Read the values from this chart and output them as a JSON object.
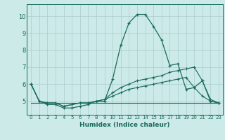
{
  "xlabel": "Humidex (Indice chaleur)",
  "bg_color": "#cceae8",
  "grid_color": "#aacccc",
  "line_color": "#1a6b5a",
  "x_ticks": [
    0,
    1,
    2,
    3,
    4,
    5,
    6,
    7,
    8,
    9,
    10,
    11,
    12,
    13,
    14,
    15,
    16,
    17,
    18,
    19,
    20,
    21,
    22,
    23
  ],
  "y_ticks": [
    5,
    6,
    7,
    8,
    9,
    10
  ],
  "xlim": [
    -0.5,
    23.5
  ],
  "ylim": [
    4.2,
    10.7
  ],
  "series": [
    [
      6.0,
      5.0,
      4.8,
      4.8,
      4.6,
      4.6,
      4.7,
      4.8,
      5.0,
      5.0,
      6.3,
      8.3,
      9.6,
      10.1,
      10.1,
      9.4,
      8.6,
      7.1,
      7.2,
      5.7,
      5.8,
      6.2,
      5.0,
      4.9
    ],
    [
      6.0,
      5.0,
      4.9,
      4.9,
      4.7,
      4.8,
      4.9,
      4.9,
      5.0,
      5.1,
      5.5,
      5.8,
      6.0,
      6.2,
      6.3,
      6.4,
      6.5,
      6.7,
      6.8,
      6.9,
      7.0,
      6.2,
      5.1,
      4.9
    ],
    [
      6.0,
      5.0,
      4.9,
      4.9,
      4.7,
      4.8,
      4.9,
      4.9,
      5.0,
      5.1,
      5.3,
      5.5,
      5.7,
      5.8,
      5.9,
      6.0,
      6.1,
      6.2,
      6.3,
      6.4,
      5.8,
      5.3,
      5.0,
      4.9
    ],
    [
      4.9,
      4.9,
      4.9,
      4.9,
      4.9,
      4.9,
      4.9,
      4.9,
      4.9,
      4.9,
      4.9,
      4.9,
      4.9,
      4.9,
      4.9,
      4.9,
      4.9,
      4.9,
      4.9,
      4.9,
      4.9,
      4.9,
      4.9,
      4.9
    ]
  ]
}
